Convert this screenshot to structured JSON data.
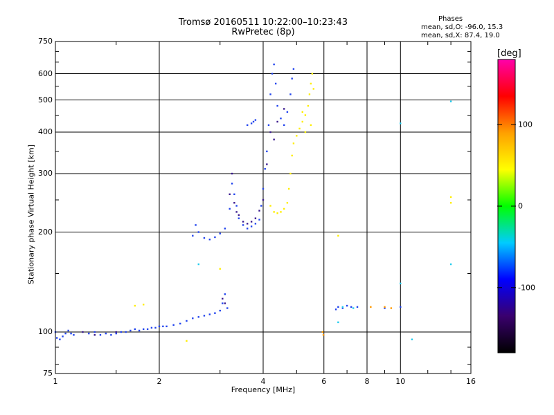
{
  "chart_data": {
    "type": "scatter",
    "title": "Tromsø 20160511 10:22:00–10:23:43",
    "subtitle": "RwPretec (8p)",
    "xlabel": "Frequency [MHz]",
    "ylabel": "Stationary phase Virtual Height [km]",
    "x_scale": "log",
    "y_scale": "log",
    "xlim": [
      1,
      16
    ],
    "ylim": [
      75,
      750
    ],
    "x_ticks": [
      "1",
      "2",
      "4",
      "6",
      "8",
      "10",
      "16"
    ],
    "y_ticks": [
      "75",
      "100",
      "200",
      "300",
      "400",
      "500",
      "600",
      "750"
    ],
    "x_grid": [
      2,
      4,
      6,
      8,
      10
    ],
    "y_grid": [
      100,
      200,
      300,
      400,
      500,
      600
    ],
    "stats": {
      "title": "Phases",
      "line_o": "mean, sd,O: -96.0, 15.3",
      "line_x": "mean, sd,X: 87.4, 19.0"
    },
    "colorbar": {
      "title": "[deg]",
      "range": [
        -180,
        180
      ],
      "ticks": [
        "100",
        "0",
        "-100"
      ],
      "tick_values": [
        100,
        0,
        -100
      ],
      "colors": [
        "#000000",
        "#3a006e",
        "#0000ff",
        "#00ccff",
        "#00ff00",
        "#ffff00",
        "#ffa000",
        "#ff0000",
        "#ff00aa"
      ]
    },
    "series": [
      {
        "color": "#2244ee",
        "phase": -100,
        "points": [
          [
            1.0,
            100
          ],
          [
            1.01,
            96
          ],
          [
            1.03,
            95
          ],
          [
            1.05,
            97
          ],
          [
            1.07,
            99
          ],
          [
            1.09,
            101
          ],
          [
            1.11,
            99
          ],
          [
            1.13,
            98
          ],
          [
            1.25,
            99
          ],
          [
            1.3,
            100
          ],
          [
            1.35,
            98
          ],
          [
            1.4,
            99
          ],
          [
            1.45,
            98
          ],
          [
            1.5,
            99
          ],
          [
            1.55,
            100
          ],
          [
            1.6,
            100
          ],
          [
            1.65,
            101
          ],
          [
            1.7,
            102
          ],
          [
            1.75,
            101
          ],
          [
            1.8,
            102
          ],
          [
            1.85,
            102
          ],
          [
            1.9,
            103
          ],
          [
            1.95,
            103
          ],
          [
            2.0,
            104
          ],
          [
            2.05,
            104
          ],
          [
            2.1,
            104
          ],
          [
            2.2,
            105
          ],
          [
            2.3,
            106
          ],
          [
            2.4,
            108
          ],
          [
            2.5,
            110
          ],
          [
            2.6,
            111
          ],
          [
            2.7,
            112
          ],
          [
            2.8,
            113
          ],
          [
            2.9,
            114
          ],
          [
            3.0,
            116
          ],
          [
            3.05,
            122
          ],
          [
            3.1,
            130
          ],
          [
            3.15,
            118
          ],
          [
            2.5,
            195
          ],
          [
            2.55,
            210
          ],
          [
            2.6,
            200
          ],
          [
            2.7,
            192
          ],
          [
            2.8,
            190
          ],
          [
            2.9,
            193
          ],
          [
            3.0,
            198
          ],
          [
            3.1,
            205
          ],
          [
            3.2,
            235
          ],
          [
            3.25,
            280
          ],
          [
            3.3,
            260
          ],
          [
            3.35,
            240
          ],
          [
            3.4,
            220
          ],
          [
            3.5,
            210
          ],
          [
            3.6,
            205
          ],
          [
            3.7,
            208
          ],
          [
            3.8,
            212
          ],
          [
            3.9,
            218
          ],
          [
            3.95,
            240
          ],
          [
            4.0,
            270
          ],
          [
            4.05,
            310
          ],
          [
            4.1,
            350
          ],
          [
            4.15,
            420
          ],
          [
            4.2,
            520
          ],
          [
            4.25,
            600
          ],
          [
            4.3,
            640
          ],
          [
            4.35,
            560
          ],
          [
            4.4,
            480
          ],
          [
            4.5,
            440
          ],
          [
            4.6,
            420
          ],
          [
            4.7,
            460
          ],
          [
            4.8,
            520
          ],
          [
            4.85,
            580
          ],
          [
            4.9,
            620
          ],
          [
            3.7,
            425
          ],
          [
            3.75,
            430
          ],
          [
            3.8,
            435
          ],
          [
            3.6,
            420
          ],
          [
            6.5,
            117
          ],
          [
            6.6,
            119
          ],
          [
            6.8,
            118
          ],
          [
            7.0,
            120
          ],
          [
            7.2,
            119
          ],
          [
            7.5,
            119
          ],
          [
            9.0,
            118
          ],
          [
            10.0,
            119
          ]
        ]
      },
      {
        "color": "#3a1a8e",
        "phase": -130,
        "points": [
          [
            3.2,
            260
          ],
          [
            3.25,
            300
          ],
          [
            3.3,
            245
          ],
          [
            3.35,
            230
          ],
          [
            3.4,
            225
          ],
          [
            3.5,
            215
          ],
          [
            3.6,
            212
          ],
          [
            3.7,
            215
          ],
          [
            3.8,
            220
          ],
          [
            3.9,
            232
          ],
          [
            4.0,
            250
          ],
          [
            4.1,
            320
          ],
          [
            4.2,
            400
          ],
          [
            4.3,
            380
          ],
          [
            4.4,
            430
          ],
          [
            4.6,
            470
          ],
          [
            3.05,
            126
          ],
          [
            3.1,
            122
          ],
          [
            1.2,
            100
          ],
          [
            1.3,
            98
          ],
          [
            1.5,
            100
          ]
        ]
      },
      {
        "color": "#ffee00",
        "phase": 100,
        "points": [
          [
            4.2,
            240
          ],
          [
            4.3,
            230
          ],
          [
            4.4,
            228
          ],
          [
            4.5,
            230
          ],
          [
            4.6,
            235
          ],
          [
            4.7,
            245
          ],
          [
            4.75,
            270
          ],
          [
            4.8,
            300
          ],
          [
            4.85,
            340
          ],
          [
            4.9,
            370
          ],
          [
            5.0,
            390
          ],
          [
            5.1,
            410
          ],
          [
            5.2,
            430
          ],
          [
            5.3,
            450
          ],
          [
            5.4,
            480
          ],
          [
            5.45,
            520
          ],
          [
            5.5,
            560
          ],
          [
            5.55,
            600
          ],
          [
            5.6,
            540
          ],
          [
            5.5,
            420
          ],
          [
            5.3,
            400
          ],
          [
            5.2,
            460
          ],
          [
            14.0,
            245
          ],
          [
            14.0,
            255
          ],
          [
            6.6,
            195
          ],
          [
            1.7,
            120
          ],
          [
            1.8,
            121
          ],
          [
            2.4,
            94
          ],
          [
            3.0,
            155
          ]
        ]
      },
      {
        "color": "#ff9900",
        "phase": 140,
        "points": [
          [
            5.95,
            100
          ],
          [
            5.98,
            98
          ],
          [
            9.0,
            119
          ],
          [
            9.4,
            118
          ],
          [
            8.2,
            119
          ]
        ]
      },
      {
        "color": "#22ccee",
        "phase": 10,
        "points": [
          [
            2.6,
            160
          ],
          [
            10.0,
            425
          ],
          [
            14.0,
            495
          ],
          [
            6.8,
            119
          ],
          [
            7.3,
            118
          ],
          [
            6.6,
            107
          ],
          [
            10.0,
            140
          ],
          [
            10.8,
            95
          ],
          [
            14.0,
            160
          ]
        ]
      }
    ]
  }
}
